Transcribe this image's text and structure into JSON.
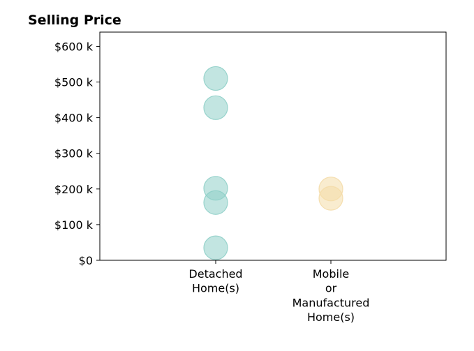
{
  "chart_data": {
    "type": "scatter",
    "title": "Selling Price",
    "xlabel": "",
    "ylabel": "",
    "categories": [
      [
        "Detached",
        "Home(s)"
      ],
      [
        "Mobile",
        "or",
        "Manufactured",
        "Home(s)"
      ]
    ],
    "ylim": [
      0,
      640000
    ],
    "y_ticks": [
      0,
      100000,
      200000,
      300000,
      400000,
      500000,
      600000
    ],
    "y_tick_labels": [
      "$0",
      "$100 k",
      "$200 k",
      "$300 k",
      "$400 k",
      "$500 k",
      "$600 k"
    ],
    "grid": false,
    "legend": "none",
    "series": [
      {
        "category_index": 0,
        "color": "#8fcfc8",
        "values": [
          510000,
          428000,
          202000,
          162000,
          35000
        ]
      },
      {
        "category_index": 1,
        "color": "#f4dca8",
        "values": [
          200000,
          174000
        ]
      }
    ]
  }
}
